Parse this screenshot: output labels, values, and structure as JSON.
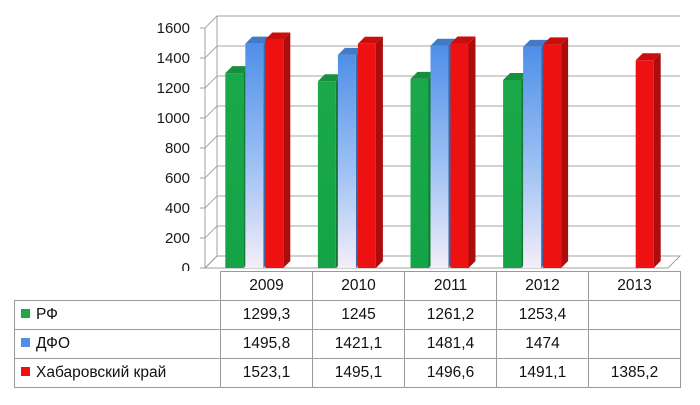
{
  "chart_data": {
    "type": "bar",
    "categories": [
      "2009",
      "2010",
      "2011",
      "2012",
      "2013"
    ],
    "yticks": [
      "0",
      "200",
      "400",
      "600",
      "800",
      "1000",
      "1200",
      "1400",
      "1600"
    ],
    "ylim": [
      0,
      1600
    ],
    "grid": true,
    "series": [
      {
        "name": "РФ",
        "color": "#1aa84a",
        "values": [
          1299.3,
          1245,
          1261.2,
          1253.4,
          null
        ],
        "labels": [
          "1299,3",
          "1245",
          "1261,2",
          "1253,4",
          ""
        ]
      },
      {
        "name": "ДФО",
        "color": "#4f8fe8",
        "values": [
          1495.8,
          1421.1,
          1481.4,
          1474,
          null
        ],
        "labels": [
          "1495,8",
          "1421,1",
          "1481,4",
          "1474",
          ""
        ]
      },
      {
        "name": "Хабаровский край",
        "color": "#ee1111",
        "values": [
          1523.1,
          1495.1,
          1496.6,
          1491.1,
          1385.2
        ],
        "labels": [
          "1523,1",
          "1495,1",
          "1496,6",
          "1491,1",
          "1385,2"
        ]
      }
    ]
  }
}
